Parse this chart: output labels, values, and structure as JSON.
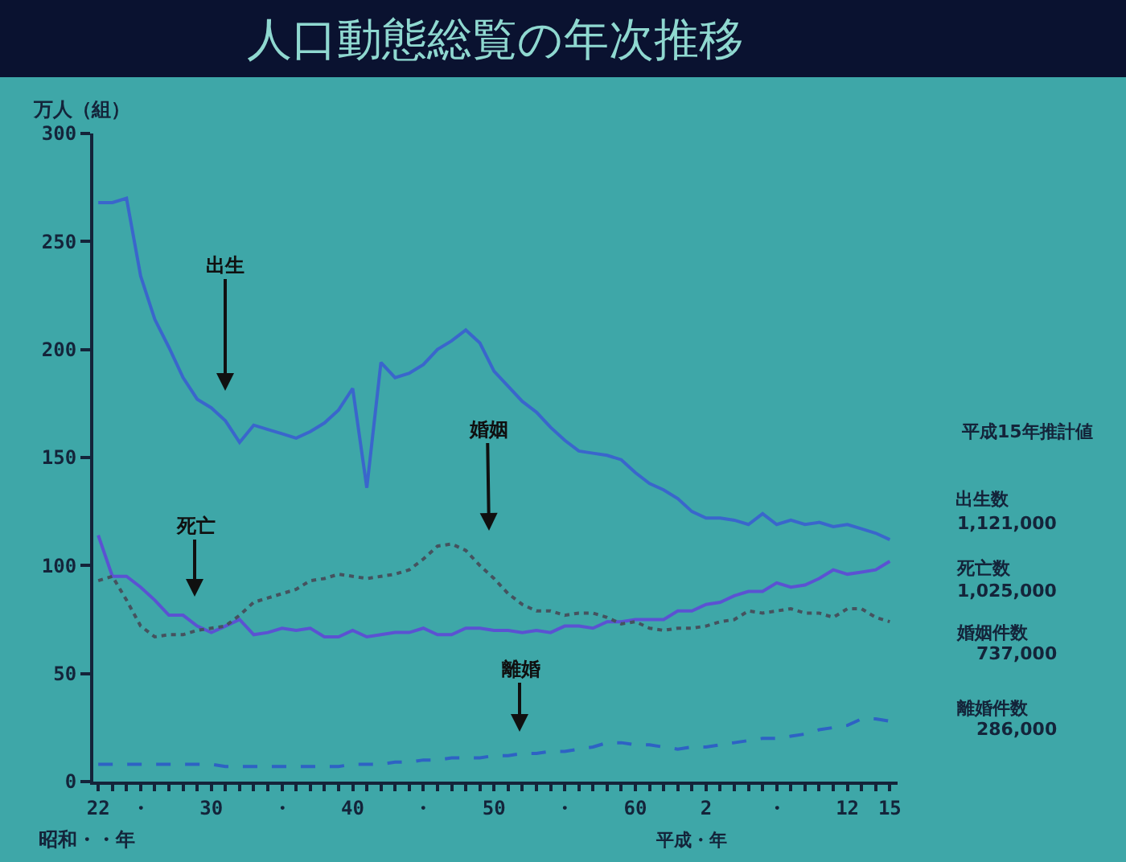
{
  "chart_data": {
    "type": "line",
    "title": "人口動態総覧の年次推移",
    "xlabel": "昭和・・年",
    "ylabel": "万人（組）",
    "categories": [
      "22",
      null,
      null,
      "・",
      null,
      null,
      null,
      null,
      "30",
      null,
      null,
      null,
      null,
      "・",
      null,
      null,
      null,
      null,
      "40",
      null,
      null,
      null,
      null,
      "・",
      null,
      null,
      null,
      null,
      "50",
      null,
      null,
      null,
      null,
      "・",
      null,
      null,
      null,
      null,
      "60",
      null,
      null,
      null,
      null,
      "2",
      null,
      null,
      null,
      null,
      "・",
      null,
      null,
      null,
      null,
      "12",
      null,
      null,
      "15"
    ],
    "ylim": [
      0,
      300
    ],
    "yticks": [
      0,
      50,
      100,
      150,
      200,
      250,
      300
    ],
    "series": [
      {
        "color": "#3a66cc",
        "line_style": "solid",
        "values": [
          268,
          268,
          270,
          234,
          214,
          201,
          187,
          177,
          173,
          167,
          157,
          165,
          163,
          161,
          159,
          162,
          166,
          172,
          182,
          136,
          194,
          187,
          189,
          193,
          200,
          204,
          209,
          203,
          190,
          183,
          176,
          171,
          164,
          158,
          153,
          152,
          151,
          149,
          143,
          138,
          135,
          131,
          125,
          122,
          122,
          121,
          119,
          124,
          119,
          121,
          119,
          120,
          118,
          119,
          117,
          115,
          112
        ]
      },
      {
        "color": "#5b52d2",
        "line_style": "solid",
        "values": [
          114,
          95,
          95,
          90,
          84,
          77,
          77,
          72,
          69,
          72,
          75,
          68,
          69,
          71,
          70,
          71,
          67,
          67,
          70,
          67,
          68,
          69,
          69,
          71,
          68,
          68,
          71,
          71,
          70,
          70,
          69,
          70,
          69,
          72,
          72,
          71,
          74,
          74,
          75,
          75,
          75,
          79,
          79,
          82,
          83,
          86,
          88,
          88,
          92,
          90,
          91,
          94,
          98,
          96,
          97,
          98,
          102
        ]
      },
      {
        "color": "#45525e",
        "line_style": "dotted",
        "values": [
          93,
          95,
          84,
          72,
          67,
          68,
          68,
          70,
          71,
          72,
          77,
          83,
          85,
          87,
          89,
          93,
          94,
          96,
          95,
          94,
          95,
          96,
          98,
          103,
          109,
          110,
          107,
          100,
          94,
          87,
          82,
          79,
          79,
          77,
          78,
          78,
          76,
          73,
          74,
          71,
          70,
          71,
          71,
          72,
          74,
          75,
          79,
          78,
          79,
          80,
          78,
          78,
          76,
          80,
          80,
          76,
          74
        ]
      },
      {
        "color": "#2e62c4",
        "line_style": "dashed",
        "values": [
          8,
          8,
          8,
          8,
          8,
          8,
          8,
          8,
          8,
          7,
          7,
          7,
          7,
          7,
          7,
          7,
          7,
          7,
          8,
          8,
          8,
          9,
          9,
          10,
          10,
          11,
          11,
          11,
          12,
          12,
          13,
          13,
          14,
          14,
          15,
          16,
          18,
          18,
          17,
          17,
          16,
          15,
          16,
          16,
          17,
          18,
          19,
          20,
          20,
          21,
          22,
          24,
          25,
          26,
          29,
          29,
          28
        ]
      }
    ],
    "annotations": [
      "出生",
      "死亡",
      "婚姻",
      "離婚",
      "平成15年推計値",
      "出生数",
      "1,121,000",
      "死亡数",
      "1,025,000",
      "婚姻件数",
      "737,000",
      "離婚件数",
      "286,000",
      "平成・年"
    ]
  }
}
